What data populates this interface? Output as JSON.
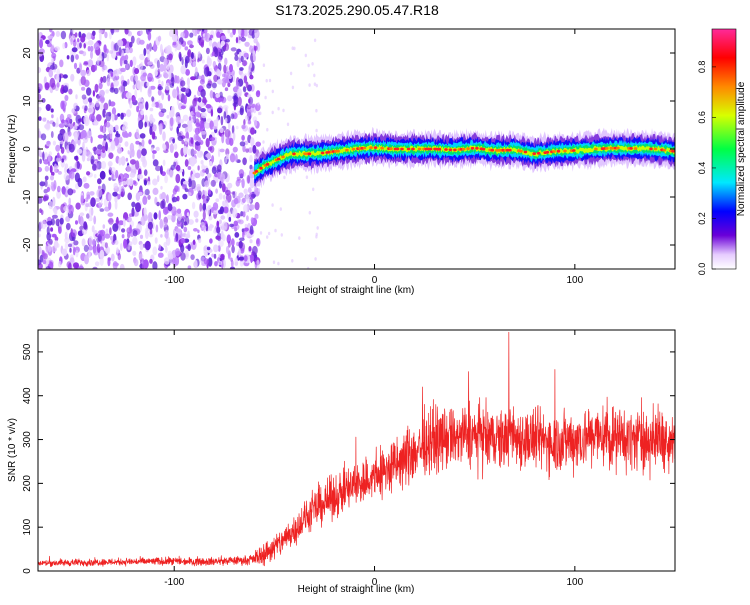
{
  "title": "S173.2025.290.05.47.R18",
  "colors": {
    "snr_line": "#ee2222",
    "scatter": "#8a2be2",
    "axis": "#000000"
  },
  "chart_data": [
    {
      "type": "heatmap",
      "name": "spectrogram",
      "xlabel": "Height of straight line (km)",
      "ylabel": "Frequency (Hz)",
      "xlim": [
        -168,
        150
      ],
      "ylim": [
        -25,
        25
      ],
      "x_ticks": [
        {
          "value": -100,
          "label": "-100"
        },
        {
          "value": 0,
          "label": "0"
        },
        {
          "value": 100,
          "label": "100"
        }
      ],
      "y_ticks": [
        {
          "value": 20,
          "label": "20"
        },
        {
          "value": 10,
          "label": "10"
        },
        {
          "value": 0,
          "label": "0"
        },
        {
          "value": -10,
          "label": "-10"
        },
        {
          "value": -20,
          "label": "-20"
        }
      ],
      "noise_region_x": [
        -168,
        -58
      ],
      "signal_track": {
        "x": [
          -60,
          -55,
          -50,
          -45,
          -40,
          -35,
          -30,
          -25,
          -20,
          -15,
          -10,
          -5,
          0,
          10,
          20,
          30,
          40,
          50,
          60,
          70,
          80,
          90,
          100,
          110,
          120,
          130,
          140,
          150
        ],
        "freq": [
          -5,
          -3.5,
          -2.5,
          -1.5,
          -1,
          -1,
          -1,
          -0.8,
          -0.5,
          -0.3,
          0,
          0.2,
          0.3,
          0,
          0,
          0,
          -0.2,
          0.2,
          -0.3,
          -0.2,
          -1,
          -0.5,
          -0.3,
          0,
          0.2,
          0.1,
          0,
          -0.5
        ]
      },
      "colorbar": {
        "label": "Normalized spectral amplitude",
        "range": [
          0,
          0.95
        ],
        "ticks": [
          {
            "value": 0.0,
            "label": "0.0"
          },
          {
            "value": 0.2,
            "label": "0.2"
          },
          {
            "value": 0.4,
            "label": "0.4"
          },
          {
            "value": 0.6,
            "label": "0.6"
          },
          {
            "value": 0.8,
            "label": "0.8"
          }
        ]
      }
    },
    {
      "type": "line",
      "name": "snr",
      "xlabel": "Height of straight line (km)",
      "ylabel": "SNR (10 * v/v)",
      "xlim": [
        -168,
        150
      ],
      "ylim": [
        0,
        550
      ],
      "x_ticks": [
        {
          "value": -100,
          "label": "-100"
        },
        {
          "value": 0,
          "label": "0"
        },
        {
          "value": 100,
          "label": "100"
        }
      ],
      "y_ticks": [
        {
          "value": 0,
          "label": "0"
        },
        {
          "value": 100,
          "label": "100"
        },
        {
          "value": 200,
          "label": "200"
        },
        {
          "value": 300,
          "label": "300"
        },
        {
          "value": 400,
          "label": "400"
        },
        {
          "value": 500,
          "label": "500"
        }
      ],
      "trend": {
        "x": [
          -168,
          -140,
          -110,
          -80,
          -62,
          -55,
          -48,
          -40,
          -30,
          -20,
          -10,
          0,
          10,
          20,
          25,
          30,
          40,
          50,
          60,
          70,
          80,
          90,
          100,
          110,
          120,
          130,
          140,
          150
        ],
        "y": [
          18,
          20,
          22,
          22,
          25,
          40,
          60,
          95,
          140,
          170,
          195,
          215,
          240,
          270,
          290,
          300,
          305,
          310,
          300,
          305,
          300,
          295,
          300,
          310,
          305,
          300,
          300,
          305
        ]
      },
      "noise_amplitude": {
        "x": [
          -168,
          -62,
          -55,
          -20,
          20,
          150
        ],
        "y": [
          7,
          9,
          25,
          45,
          65,
          65
        ]
      },
      "spikes": [
        {
          "x": 67,
          "y": 545
        },
        {
          "x": 90,
          "y": 460
        },
        {
          "x": 47,
          "y": 455
        },
        {
          "x": 24,
          "y": 420
        }
      ]
    }
  ]
}
